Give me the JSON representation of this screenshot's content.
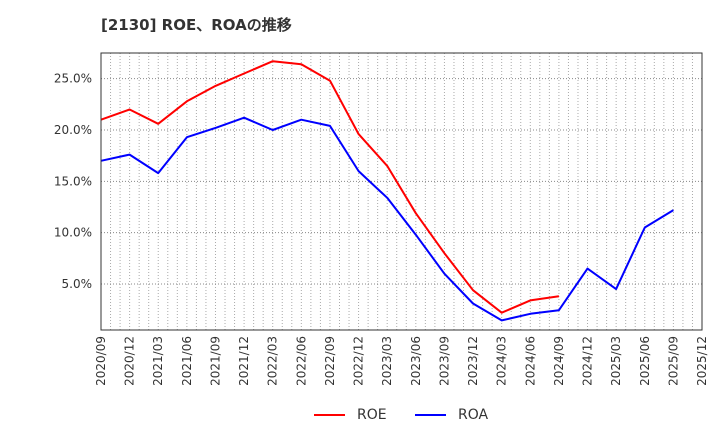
{
  "title": "[2130]  ROE、ROAの推移",
  "chart_data": {
    "type": "line",
    "title": "[2130]  ROE、ROAの推移",
    "xlabel": "",
    "ylabel": "",
    "ylim": [
      0.2,
      27.5
    ],
    "yticks": [
      5.0,
      10.0,
      15.0,
      20.0,
      25.0
    ],
    "ytick_labels": [
      "5.0%",
      "10.0%",
      "15.0%",
      "20.0%",
      "25.0%"
    ],
    "grid": true,
    "legend_position": "bottom",
    "categories": [
      "2020/09",
      "2020/12",
      "2021/03",
      "2021/06",
      "2021/09",
      "2021/12",
      "2022/03",
      "2022/06",
      "2022/09",
      "2022/12",
      "2023/03",
      "2023/06",
      "2023/09",
      "2023/12",
      "2024/03",
      "2024/06",
      "2024/09",
      "2024/12",
      "2025/03",
      "2025/06",
      "2025/09",
      "2025/12"
    ],
    "series": [
      {
        "name": "ROE",
        "color": "#ff0000",
        "values": [
          21.0,
          22.0,
          20.6,
          22.8,
          24.3,
          25.5,
          26.7,
          26.4,
          24.8,
          19.6,
          16.5,
          11.9,
          8.0,
          4.4,
          2.2,
          3.4,
          3.8,
          null,
          null,
          null,
          null,
          null
        ]
      },
      {
        "name": "ROA",
        "color": "#0000ff",
        "values": [
          17.0,
          17.6,
          15.8,
          19.3,
          20.2,
          21.2,
          20.0,
          21.0,
          20.4,
          16.0,
          13.4,
          9.8,
          6.0,
          3.1,
          1.45,
          2.1,
          2.45,
          6.5,
          4.5,
          10.5,
          12.2,
          null
        ]
      }
    ]
  },
  "legend": {
    "items": [
      {
        "label": "ROE",
        "color": "#ff0000"
      },
      {
        "label": "ROA",
        "color": "#0000ff"
      }
    ]
  }
}
